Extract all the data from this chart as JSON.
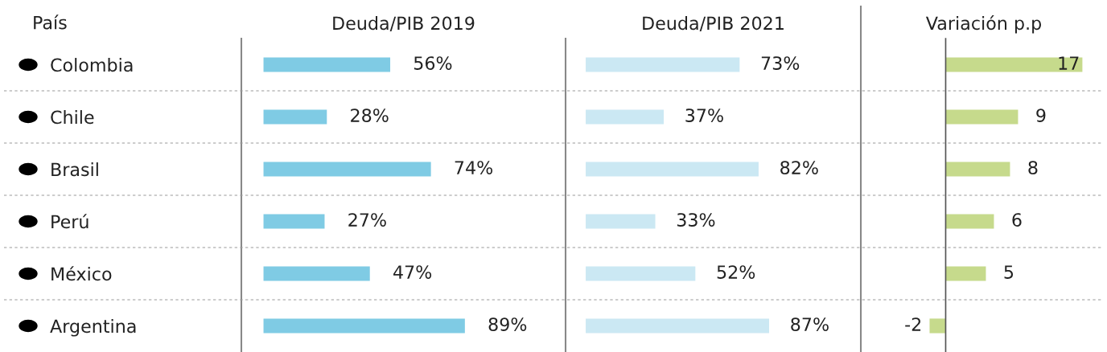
{
  "chart_data": [
    {
      "type": "bar",
      "orientation": "horizontal",
      "title": "Deuda/PIB 2019",
      "ylabel": "País",
      "tick_labels": "y",
      "categories": [
        "Colombia",
        "Chile",
        "Brasil",
        "Perú",
        "México",
        "Argentina"
      ],
      "values": [
        56,
        28,
        74,
        27,
        47,
        89
      ],
      "value_labels": [
        "56%",
        "28%",
        "74%",
        "27%",
        "47%",
        "89%"
      ],
      "color": "#7fcbe4"
    },
    {
      "type": "bar",
      "orientation": "horizontal",
      "title": "Deuda/PIB 2021",
      "tick_labels": false,
      "values": [
        73,
        37,
        82,
        33,
        52,
        87
      ],
      "value_labels": [
        "73%",
        "37%",
        "82%",
        "33%",
        "52%",
        "87%"
      ],
      "color": "#cbe8f3"
    },
    {
      "type": "bar",
      "orientation": "horizontal",
      "title": "Variación p.p",
      "tick_labels": false,
      "values": [
        17,
        9,
        8,
        6,
        5,
        -2
      ],
      "value_labels": [
        "17",
        "9",
        "8",
        "6",
        "5",
        "-2"
      ],
      "color": "#c6da8c"
    }
  ]
}
